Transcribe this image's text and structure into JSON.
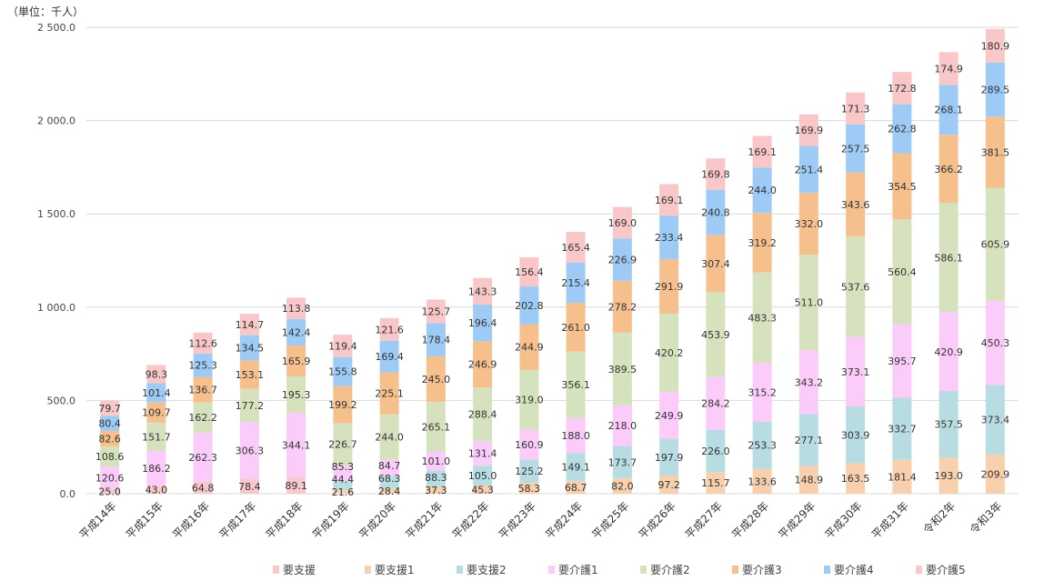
{
  "chart_data": {
    "type": "bar",
    "stacked": true,
    "title": "",
    "unit_label": "（単位：千人）",
    "xlabel": "",
    "ylabel": "",
    "ylim": [
      0,
      2500
    ],
    "yticks": [
      0,
      500,
      1000,
      1500,
      2000,
      2500
    ],
    "ytick_labels": [
      "0.0",
      "500.0",
      "1 000.0",
      "1 500.0",
      "2 000.0",
      "2 500.0"
    ],
    "grid": true,
    "legend_position": "bottom",
    "categories": [
      "平成14年",
      "平成15年",
      "平成16年",
      "平成17年",
      "平成18年",
      "平成19年",
      "平成20年",
      "平成21年",
      "平成22年",
      "平成23年",
      "平成24年",
      "平成25年",
      "平成26年",
      "平成27年",
      "平成28年",
      "平成29年",
      "平成30年",
      "平成31年",
      "令和2年",
      "令和3年"
    ],
    "series": [
      {
        "name": "要支援",
        "color": "#f8c8ca",
        "values": [
          25.0,
          43.0,
          64.8,
          78.4,
          89.1,
          null,
          null,
          null,
          null,
          null,
          null,
          null,
          null,
          null,
          null,
          null,
          null,
          null,
          null,
          null
        ]
      },
      {
        "name": "要支援1",
        "color": "#f8d0ae",
        "values": [
          null,
          null,
          null,
          null,
          null,
          21.6,
          28.4,
          37.3,
          45.3,
          58.3,
          68.7,
          82.0,
          97.2,
          115.7,
          133.6,
          148.9,
          163.5,
          181.4,
          193.0,
          209.9
        ]
      },
      {
        "name": "要支援2",
        "color": "#b7dde3",
        "values": [
          null,
          null,
          null,
          null,
          null,
          44.4,
          68.3,
          88.3,
          105.0,
          125.2,
          149.1,
          173.7,
          197.9,
          226.0,
          253.3,
          277.1,
          303.9,
          332.7,
          357.5,
          373.4
        ]
      },
      {
        "name": "要介護1",
        "color": "#fbcbf9",
        "values": [
          120.6,
          186.2,
          262.3,
          306.3,
          344.1,
          85.3,
          84.7,
          101.0,
          131.4,
          160.9,
          188.0,
          218.0,
          249.9,
          284.2,
          315.2,
          343.2,
          373.1,
          395.7,
          420.9,
          450.3
        ]
      },
      {
        "name": "要介護2",
        "color": "#d6e2be",
        "values": [
          108.6,
          151.7,
          162.2,
          177.2,
          195.3,
          226.7,
          244.0,
          265.1,
          288.4,
          319.0,
          356.1,
          389.5,
          420.2,
          453.9,
          483.3,
          511.0,
          537.6,
          560.4,
          586.1,
          605.9
        ]
      },
      {
        "name": "要介護3",
        "color": "#f6c08d",
        "values": [
          82.6,
          109.7,
          136.7,
          153.1,
          165.9,
          199.2,
          225.1,
          245.0,
          246.9,
          244.9,
          261.0,
          278.2,
          291.9,
          307.4,
          319.2,
          332.0,
          343.6,
          354.5,
          366.2,
          381.5
        ]
      },
      {
        "name": "要介護4",
        "color": "#9dcbf5",
        "values": [
          80.4,
          101.4,
          125.3,
          134.5,
          142.4,
          155.8,
          169.4,
          178.4,
          196.4,
          202.8,
          215.4,
          226.9,
          233.4,
          240.8,
          244.0,
          251.4,
          257.5,
          262.8,
          268.1,
          289.5
        ]
      },
      {
        "name": "要介護5",
        "color": "#f9c7c7",
        "values": [
          79.7,
          98.3,
          112.6,
          114.7,
          113.8,
          119.4,
          121.6,
          125.7,
          143.3,
          156.4,
          165.4,
          169.0,
          169.1,
          169.8,
          169.1,
          169.9,
          171.3,
          172.8,
          174.9,
          180.9
        ]
      }
    ]
  }
}
